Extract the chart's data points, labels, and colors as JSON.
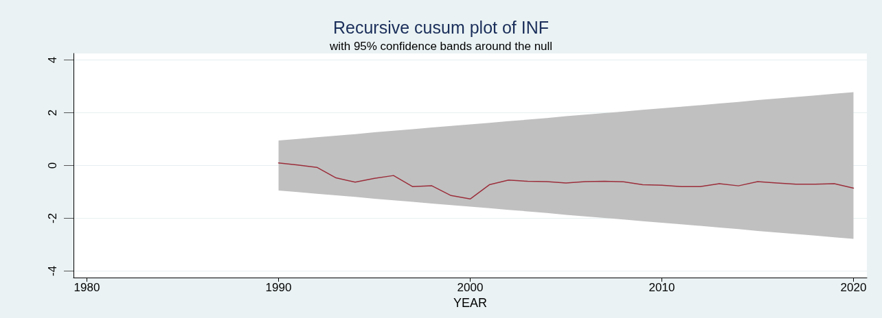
{
  "chart_data": {
    "type": "line",
    "title": "Recursive cusum plot of INF",
    "subtitle": "with 95% confidence bands around the null",
    "xlabel": "YEAR",
    "x": [
      1990,
      1991,
      1992,
      1993,
      1994,
      1995,
      1996,
      1997,
      1998,
      1999,
      2000,
      2001,
      2002,
      2003,
      2004,
      2005,
      2006,
      2007,
      2008,
      2009,
      2010,
      2011,
      2012,
      2013,
      2014,
      2015,
      2016,
      2017,
      2018,
      2019,
      2020
    ],
    "series": [
      {
        "color": "#9b2d3a",
        "values": [
          0.1,
          0.02,
          -0.07,
          -0.47,
          -0.63,
          -0.49,
          -0.38,
          -0.8,
          -0.77,
          -1.14,
          -1.27,
          -0.73,
          -0.55,
          -0.6,
          -0.61,
          -0.66,
          -0.61,
          -0.6,
          -0.62,
          -0.73,
          -0.75,
          -0.8,
          -0.8,
          -0.69,
          -0.77,
          -0.61,
          -0.66,
          -0.71,
          -0.71,
          -0.69,
          -0.86
        ],
        "upper": [
          0.95,
          1.01,
          1.07,
          1.13,
          1.19,
          1.26,
          1.32,
          1.38,
          1.44,
          1.5,
          1.56,
          1.62,
          1.68,
          1.74,
          1.8,
          1.87,
          1.93,
          1.99,
          2.05,
          2.11,
          2.17,
          2.23,
          2.29,
          2.35,
          2.41,
          2.48,
          2.54,
          2.6,
          2.66,
          2.72,
          2.78
        ],
        "lower": [
          -0.95,
          -1.01,
          -1.07,
          -1.13,
          -1.19,
          -1.26,
          -1.32,
          -1.38,
          -1.44,
          -1.5,
          -1.56,
          -1.62,
          -1.68,
          -1.74,
          -1.8,
          -1.87,
          -1.93,
          -1.99,
          -2.05,
          -2.11,
          -2.17,
          -2.23,
          -2.29,
          -2.35,
          -2.41,
          -2.48,
          -2.54,
          -2.6,
          -2.66,
          -2.72,
          -2.78
        ]
      }
    ],
    "xlim": [
      1979.3,
      2020.7
    ],
    "xticks": [
      1980,
      1990,
      2000,
      2010,
      2020
    ],
    "ylim": [
      -4.25,
      4.25
    ],
    "yticks": [
      -4,
      -2,
      0,
      2,
      4
    ],
    "grid": "y",
    "marker": "none",
    "line_style": "solid"
  }
}
